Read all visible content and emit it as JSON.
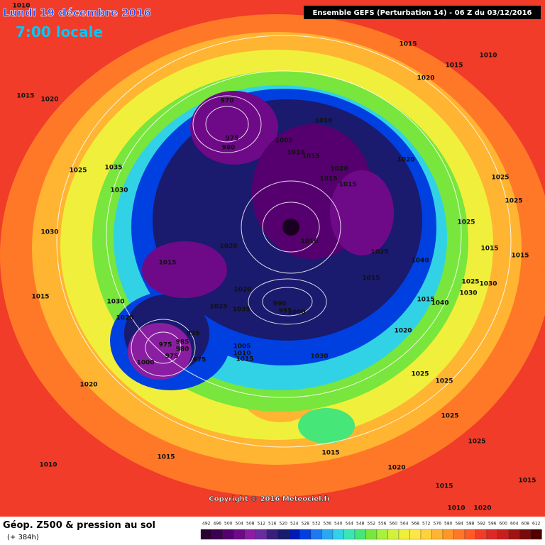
{
  "header": {
    "date": "Lundi 19 décembre 2016",
    "time": "7:00 locale",
    "run": "Ensemble GEFS  (Perturbation 14)  -  06 Z du 03/12/2016"
  },
  "footer": {
    "field": "Géop. Z500 & pression au sol",
    "lead": "(+ 384h)",
    "copyright": "Copyright © 2016 Meteociel.fr"
  },
  "colorbar": {
    "ticks": [
      492,
      496,
      500,
      504,
      508,
      512,
      516,
      520,
      524,
      528,
      532,
      536,
      540,
      544,
      548,
      552,
      556,
      560,
      564,
      568,
      572,
      576,
      580,
      584,
      588,
      592,
      596,
      600,
      604,
      608,
      612
    ],
    "colors": [
      "#2a0033",
      "#3c0050",
      "#55006e",
      "#6e0a87",
      "#8a1ea0",
      "#6a2aa0",
      "#3a1f7a",
      "#1a1a6e",
      "#0018b4",
      "#0040e0",
      "#1e78f0",
      "#28a8f0",
      "#32d2e6",
      "#3ce6b4",
      "#46e678",
      "#78e63c",
      "#aaf03c",
      "#d2f03c",
      "#f0f03c",
      "#ffe646",
      "#ffd23c",
      "#ffb432",
      "#ff9628",
      "#ff7828",
      "#ff5a28",
      "#f03c28",
      "#dc2828",
      "#c81e1e",
      "#a01414",
      "#780a0a",
      "#500000"
    ]
  },
  "isobar_labels": [
    "1010",
    "1015",
    "1010",
    "1015",
    "1020",
    "1015",
    "1020",
    "970",
    "1010",
    "975",
    "980",
    "1005",
    "1010",
    "1015",
    "1020",
    "1020",
    "1025",
    "1035",
    "1015",
    "1015",
    "1025",
    "1030",
    "1025",
    "1025",
    "1030",
    "1010",
    "1020",
    "1025",
    "1015",
    "1040",
    "1015",
    "1015",
    "1015",
    "1025",
    "1030",
    "1030",
    "1020",
    "1015",
    "1030",
    "1040",
    "1015",
    "990",
    "995",
    "1000",
    "1025",
    "1035",
    "1025",
    "1020",
    "995",
    "975",
    "985",
    "980",
    "975",
    "1005",
    "1010",
    "1015",
    "1030",
    "975",
    "1000",
    "1025",
    "1025",
    "1020",
    "1025",
    "1025",
    "1015",
    "1015",
    "1010",
    "1020",
    "1015",
    "1015",
    "1010",
    "1020"
  ]
}
